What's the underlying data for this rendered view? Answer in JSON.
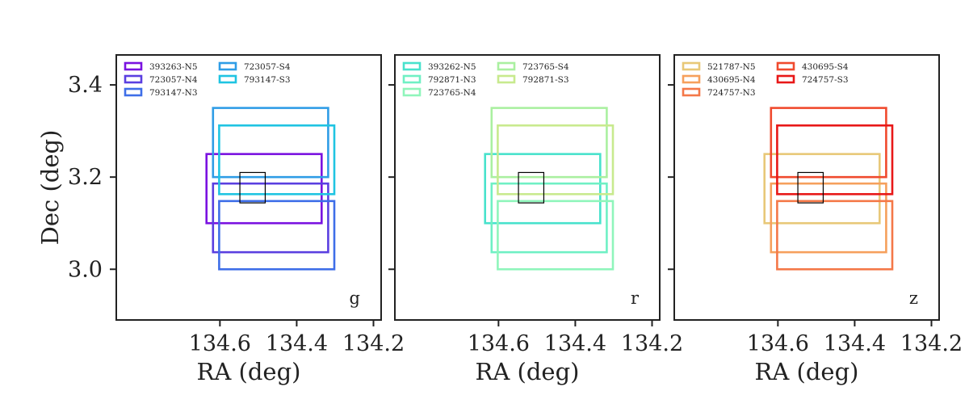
{
  "chart_data": {
    "type": "footprint",
    "xlabel": "RA (deg)",
    "ylabel": "Dec (deg)",
    "xlim": [
      134.87,
      134.18
    ],
    "ylim": [
      2.89,
      3.465
    ],
    "xticks": [
      134.6,
      134.4,
      134.2
    ],
    "xtick_labels": [
      "134.6",
      "134.4",
      "134.2"
    ],
    "yticks": [
      3.0,
      3.2,
      3.4
    ],
    "ytick_labels": [
      "3.0",
      "3.2",
      "3.4"
    ],
    "target_box": {
      "ra": [
        134.548,
        134.482
      ],
      "dec": [
        3.144,
        3.21
      ]
    },
    "panels": [
      {
        "band": "g",
        "footprints": [
          {
            "name": "393263-N5",
            "color": "#7a12e0",
            "ra": [
              134.635,
              134.335
            ],
            "dec": [
              3.1,
              3.25
            ]
          },
          {
            "name": "723057-N4",
            "color": "#5a3fe0",
            "ra": [
              134.618,
              134.318
            ],
            "dec": [
              3.037,
              3.186
            ]
          },
          {
            "name": "793147-N3",
            "color": "#3e6ee8",
            "ra": [
              134.602,
              134.302
            ],
            "dec": [
              3.0,
              3.148
            ]
          },
          {
            "name": "723057-S4",
            "color": "#2f9de6",
            "ra": [
              134.618,
              134.318
            ],
            "dec": [
              3.2,
              3.35
            ]
          },
          {
            "name": "793147-S3",
            "color": "#1fc4e2",
            "ra": [
              134.602,
              134.302
            ],
            "dec": [
              3.163,
              3.312
            ]
          }
        ]
      },
      {
        "band": "r",
        "footprints": [
          {
            "name": "393262-N5",
            "color": "#48e2cc",
            "ra": [
              134.635,
              134.335
            ],
            "dec": [
              3.1,
              3.25
            ]
          },
          {
            "name": "792871-N3",
            "color": "#6ff0c4",
            "ra": [
              134.618,
              134.318
            ],
            "dec": [
              3.037,
              3.186
            ]
          },
          {
            "name": "723765-N4",
            "color": "#8ff5bb",
            "ra": [
              134.602,
              134.302
            ],
            "dec": [
              3.0,
              3.148
            ]
          },
          {
            "name": "723765-S4",
            "color": "#aaf0a0",
            "ra": [
              134.618,
              134.318
            ],
            "dec": [
              3.2,
              3.35
            ]
          },
          {
            "name": "792871-S3",
            "color": "#c8ea8e",
            "ra": [
              134.602,
              134.302
            ],
            "dec": [
              3.163,
              3.312
            ]
          }
        ]
      },
      {
        "band": "z",
        "footprints": [
          {
            "name": "521787-N5",
            "color": "#e8c878",
            "ra": [
              134.635,
              134.335
            ],
            "dec": [
              3.1,
              3.25
            ]
          },
          {
            "name": "430695-N4",
            "color": "#f6a05c",
            "ra": [
              134.618,
              134.318
            ],
            "dec": [
              3.037,
              3.186
            ]
          },
          {
            "name": "724757-N3",
            "color": "#f47848",
            "ra": [
              134.602,
              134.302
            ],
            "dec": [
              3.0,
              3.148
            ]
          },
          {
            "name": "430695-S4",
            "color": "#f04a2e",
            "ra": [
              134.618,
              134.318
            ],
            "dec": [
              3.2,
              3.35
            ]
          },
          {
            "name": "724757-S3",
            "color": "#e81818",
            "ra": [
              134.602,
              134.302
            ],
            "dec": [
              3.163,
              3.312
            ]
          }
        ]
      }
    ]
  }
}
